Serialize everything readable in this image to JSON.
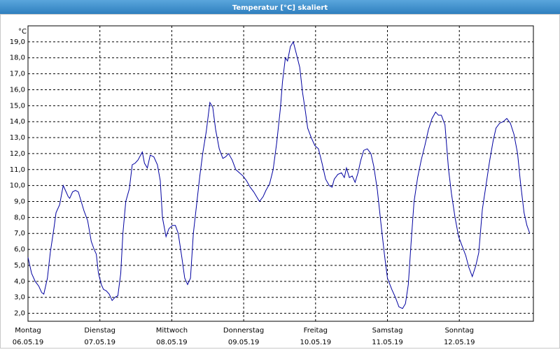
{
  "chart_data": {
    "type": "line",
    "title": "Temperatur [°C] skaliert",
    "y_label": "°C",
    "color": "#0000a0",
    "xlim": [
      0,
      7.03
    ],
    "ylim": [
      1.5,
      20
    ],
    "grid": true,
    "xticks": [
      {
        "value": 0,
        "label": "Montag"
      },
      {
        "value": 1,
        "label": "Dienstag"
      },
      {
        "value": 2,
        "label": "Mittwoch"
      },
      {
        "value": 3,
        "label": "Donnerstag"
      },
      {
        "value": 4,
        "label": "Freitag"
      },
      {
        "value": 5,
        "label": "Samstag"
      },
      {
        "value": 6,
        "label": "Sonntag"
      }
    ],
    "x_dates": [
      "06.05.19",
      "07.05.19",
      "08.05.19",
      "09.05.19",
      "10.05.19",
      "11.05.19",
      "12.05.19"
    ],
    "yticks": [
      {
        "value": 2,
        "label": "2,0"
      },
      {
        "value": 3,
        "label": "3,0"
      },
      {
        "value": 4,
        "label": "4,0"
      },
      {
        "value": 5,
        "label": "5,0"
      },
      {
        "value": 6,
        "label": "6,0"
      },
      {
        "value": 7,
        "label": "7,0"
      },
      {
        "value": 8,
        "label": "8,0"
      },
      {
        "value": 9,
        "label": "9,0"
      },
      {
        "value": 10,
        "label": "10,0"
      },
      {
        "value": 11,
        "label": "11,0"
      },
      {
        "value": 12,
        "label": "12,0"
      },
      {
        "value": 13,
        "label": "13,0"
      },
      {
        "value": 14,
        "label": "14,0"
      },
      {
        "value": 15,
        "label": "15,0"
      },
      {
        "value": 16,
        "label": "16,0"
      },
      {
        "value": 17,
        "label": "17,0"
      },
      {
        "value": 18,
        "label": "18,0"
      },
      {
        "value": 19,
        "label": "19,0"
      }
    ],
    "x": [
      0,
      0.05,
      0.1,
      0.15,
      0.19,
      0.22,
      0.27,
      0.31,
      0.36,
      0.39,
      0.44,
      0.49,
      0.52,
      0.56,
      0.58,
      0.62,
      0.66,
      0.7,
      0.74,
      0.78,
      0.83,
      0.88,
      0.92,
      0.95,
      0.98,
      1.02,
      1.05,
      1.09,
      1.13,
      1.17,
      1.21,
      1.25,
      1.29,
      1.32,
      1.36,
      1.41,
      1.45,
      1.49,
      1.53,
      1.59,
      1.62,
      1.66,
      1.7,
      1.75,
      1.8,
      1.84,
      1.87,
      1.92,
      1.96,
      2.01,
      2.05,
      2.09,
      2.14,
      2.18,
      2.22,
      2.26,
      2.3,
      2.35,
      2.39,
      2.43,
      2.48,
      2.53,
      2.57,
      2.61,
      2.66,
      2.71,
      2.75,
      2.79,
      2.84,
      2.89,
      2.94,
      2.99,
      3.04,
      3.09,
      3.14,
      3.18,
      3.22,
      3.27,
      3.31,
      3.36,
      3.41,
      3.46,
      3.51,
      3.54,
      3.58,
      3.61,
      3.65,
      3.69,
      3.73,
      3.78,
      3.82,
      3.86,
      3.89,
      3.94,
      3.99,
      4.04,
      4.09,
      4.14,
      4.19,
      4.23,
      4.26,
      4.31,
      4.36,
      4.4,
      4.43,
      4.47,
      4.51,
      4.55,
      4.59,
      4.63,
      4.67,
      4.72,
      4.77,
      4.81,
      4.86,
      4.91,
      4.96,
      5.0,
      5.06,
      5.11,
      5.16,
      5.21,
      5.25,
      5.29,
      5.33,
      5.37,
      5.42,
      5.47,
      5.52,
      5.57,
      5.62,
      5.67,
      5.71,
      5.75,
      5.8,
      5.85,
      5.89,
      5.94,
      5.99,
      6.04,
      6.09,
      6.13,
      6.18,
      6.23,
      6.27,
      6.32,
      6.37,
      6.42,
      6.47,
      6.51,
      6.56,
      6.61,
      6.66,
      6.71,
      6.76,
      6.81,
      6.85,
      6.9,
      6.94,
      6.98
    ],
    "values": [
      5.5,
      4.5,
      4.0,
      3.7,
      3.3,
      3.2,
      4.2,
      5.8,
      7.3,
      8.3,
      8.8,
      10.0,
      9.7,
      9.3,
      9.2,
      9.6,
      9.7,
      9.6,
      9.0,
      8.4,
      7.8,
      6.5,
      6.0,
      5.7,
      4.5,
      3.8,
      3.5,
      3.4,
      3.2,
      2.8,
      3.0,
      3.1,
      4.5,
      7.0,
      9.0,
      9.8,
      11.3,
      11.4,
      11.6,
      12.1,
      11.4,
      11.1,
      11.9,
      11.8,
      11.3,
      10.3,
      8.0,
      6.8,
      7.3,
      7.5,
      7.5,
      7.0,
      5.5,
      4.2,
      3.8,
      4.2,
      7.0,
      9.0,
      10.6,
      12.0,
      13.4,
      15.2,
      14.9,
      13.5,
      12.3,
      11.7,
      11.8,
      12.0,
      11.6,
      11.0,
      10.8,
      10.6,
      10.3,
      9.9,
      9.6,
      9.3,
      9.0,
      9.3,
      9.7,
      10.1,
      11.0,
      12.7,
      14.8,
      16.5,
      18.0,
      17.8,
      18.7,
      19.0,
      18.3,
      17.4,
      15.8,
      14.6,
      13.6,
      13.0,
      12.5,
      12.3,
      11.4,
      10.4,
      10.0,
      9.9,
      10.4,
      10.7,
      10.8,
      10.5,
      11.1,
      10.5,
      10.6,
      10.2,
      10.8,
      11.6,
      12.2,
      12.3,
      12.0,
      11.2,
      9.7,
      7.6,
      5.6,
      4.2,
      3.5,
      3.0,
      2.4,
      2.3,
      2.6,
      3.8,
      6.5,
      9.0,
      10.5,
      11.6,
      12.5,
      13.5,
      14.2,
      14.6,
      14.4,
      14.4,
      13.8,
      11.0,
      9.5,
      8.0,
      6.8,
      6.2,
      5.6,
      4.9,
      4.3,
      5.0,
      5.8,
      8.5,
      10.0,
      11.5,
      12.8,
      13.6,
      13.9,
      14.0,
      14.2,
      13.9,
      13.2,
      12.0,
      10.2,
      8.3,
      7.5,
      7.0
    ]
  }
}
